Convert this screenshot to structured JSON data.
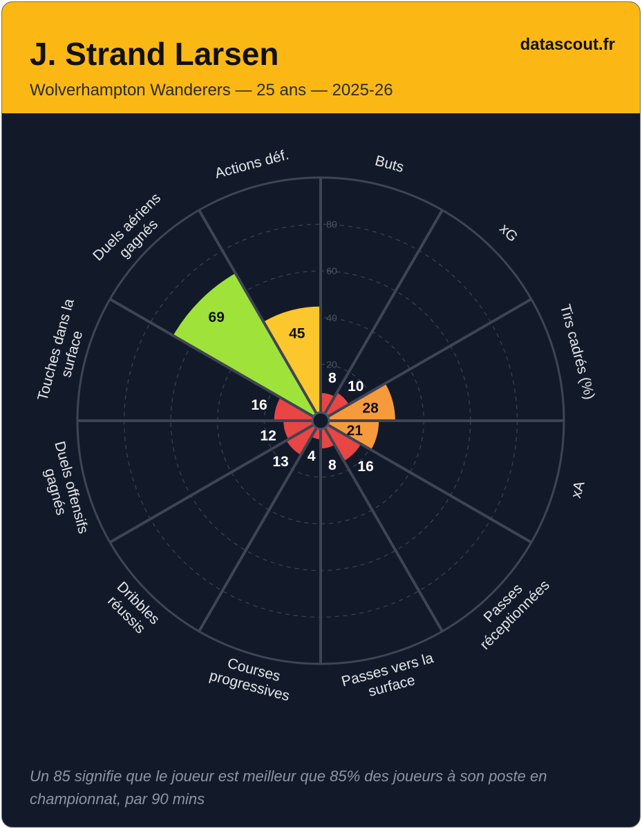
{
  "header": {
    "player_name": "J. Strand Larsen",
    "subtitle": "Wolverhampton Wanderers — 25 ans — 2025-26",
    "brand": "datascout.fr"
  },
  "footnote": "Un 85 signifie que le joueur est meilleur que 85% des joueurs à son poste en championnat, par 90 mins",
  "colors": {
    "background": "#121a2a",
    "header": "#fbb814",
    "grid": "#3a4252",
    "spoke": "#3e4554",
    "low": "#e84545",
    "mid_low": "#f79a3c",
    "mid": "#fbc72c",
    "high": "#9fe33a"
  },
  "chart_data": {
    "type": "polar-bar",
    "title": "J. Strand Larsen",
    "scale": [
      0,
      100
    ],
    "ticks": [
      20,
      40,
      60,
      80
    ],
    "categories": [
      "Buts",
      "xG",
      "Tirs cadrés (%)",
      "xA",
      "Passes réceptionnées",
      "Passes vers la surface",
      "Courses progressives",
      "Dribbles réussis",
      "Duels offensifs gagnés",
      "Touches dans la surface",
      "Duels aériens gagnés",
      "Actions déf."
    ],
    "label_lines": [
      [
        "Buts"
      ],
      [
        "xG"
      ],
      [
        "Tirs cadrés (%)"
      ],
      [
        "xA"
      ],
      [
        "Passes",
        "réceptionnées"
      ],
      [
        "Passes vers la",
        "surface"
      ],
      [
        "Courses",
        "progressives"
      ],
      [
        "Dribbles",
        "réussis"
      ],
      [
        "Duels offensifs",
        "gagnés"
      ],
      [
        "Touches dans la",
        "surface"
      ],
      [
        "Duels aériens",
        "gagnés"
      ],
      [
        "Actions déf."
      ]
    ],
    "values": [
      8,
      10,
      28,
      21,
      16,
      8,
      4,
      13,
      12,
      16,
      69,
      45
    ]
  }
}
